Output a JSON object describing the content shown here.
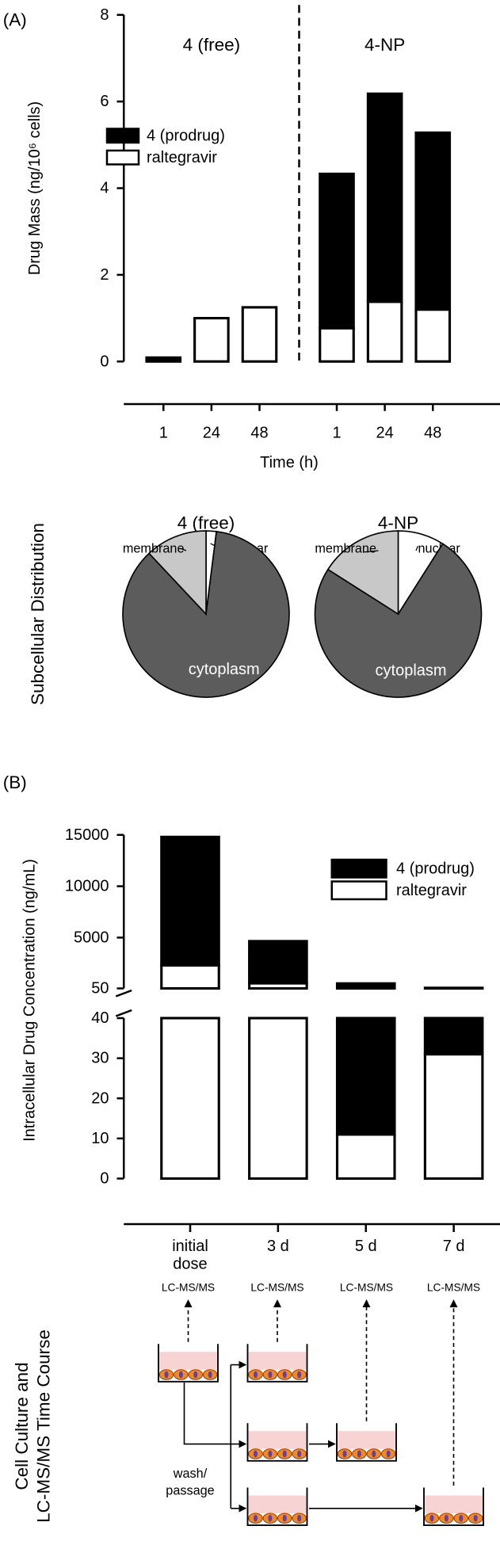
{
  "panels": [
    "(A)",
    "(B)"
  ],
  "side_labels": {
    "distribution": "Subcellular Distribution",
    "time_course": [
      "Cell Culture and",
      "LC-MS/MS Time Course"
    ]
  },
  "diagram": {
    "assay_labels": [
      "LC-MS/MS",
      "LC-MS/MS",
      "LC-MS/MS",
      "LC-MS/MS"
    ],
    "step_label": [
      "wash/",
      "passage"
    ]
  },
  "chart_data": [
    {
      "type": "bar",
      "stacked": true,
      "ylabel": "Drug Mass (ng/10⁶ cells)",
      "xlabel": "Time (h)",
      "group_labels": [
        "4 (free)",
        "4-NP"
      ],
      "categories": [
        "1",
        "24",
        "48",
        "1",
        "24",
        "48"
      ],
      "series": [
        {
          "name": "4 (prodrug)",
          "color": "#000000",
          "values": [
            0.06,
            0,
            0,
            3.56,
            4.8,
            4.08
          ]
        },
        {
          "name": "raltegravir",
          "color": "#ffffff",
          "values": [
            0.03,
            1.0,
            1.25,
            0.77,
            1.38,
            1.2
          ]
        }
      ],
      "ylim": [
        0,
        8
      ],
      "yticks": [
        0,
        2,
        4,
        6,
        8
      ]
    },
    {
      "type": "pie",
      "title": "4 (free)",
      "categories": [
        "nuclear",
        "cytoplasm",
        "membrane"
      ],
      "values": [
        2,
        86,
        12
      ],
      "colors": [
        "#ffffff",
        "#5c5c5c",
        "#c8c8c8"
      ]
    },
    {
      "type": "pie",
      "title": "4-NP",
      "categories": [
        "nuclear",
        "cytoplasm",
        "membrane"
      ],
      "values": [
        9,
        75,
        16
      ],
      "colors": [
        "#ffffff",
        "#5c5c5c",
        "#c8c8c8"
      ]
    },
    {
      "type": "bar",
      "stacked": true,
      "ylabel": "Intracellular Drug Concentration (ng/mL)",
      "categories": [
        "initial dose",
        "3 d",
        "5 d",
        "7 d"
      ],
      "series": [
        {
          "name": "4 (prodrug)",
          "color": "#000000",
          "values": [
            12500,
            4100,
            519,
            70
          ]
        },
        {
          "name": "raltegravir",
          "color": "#ffffff",
          "values": [
            2300,
            550,
            11,
            31
          ]
        }
      ],
      "ylim": [
        0,
        15000
      ],
      "ybreak": [
        40,
        50
      ],
      "yticks": [
        0,
        10,
        20,
        30,
        40,
        50,
        5000,
        10000,
        15000
      ]
    }
  ]
}
